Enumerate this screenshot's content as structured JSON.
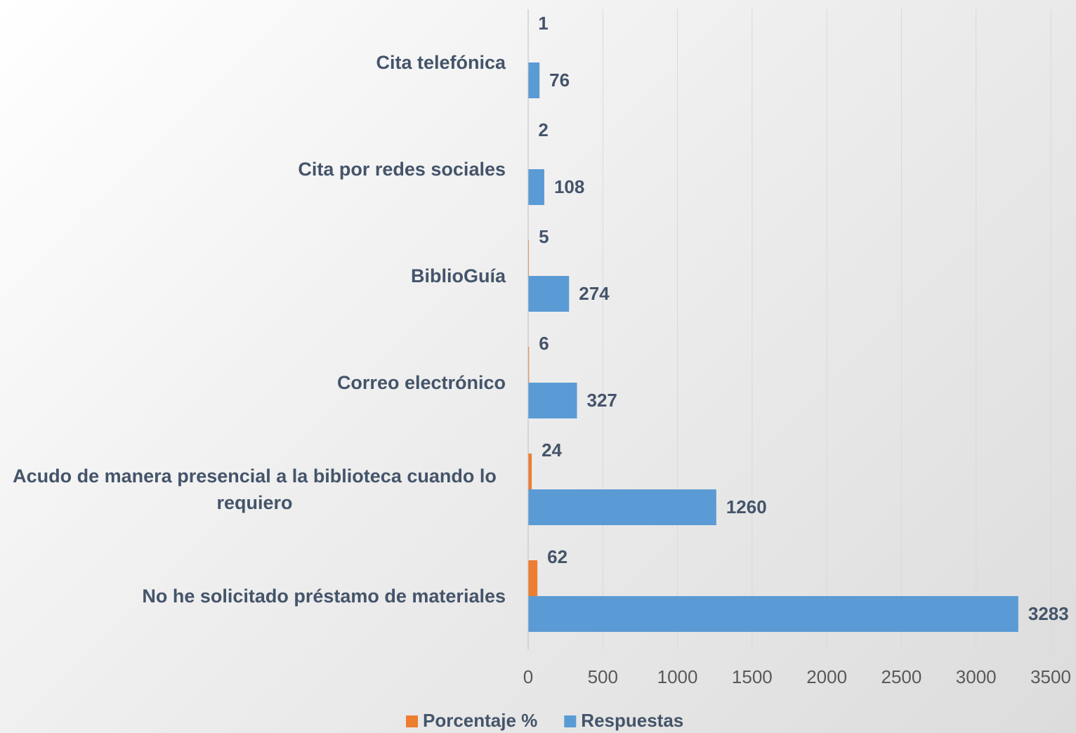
{
  "chart_data": {
    "type": "bar",
    "orientation": "horizontal",
    "categories": [
      "Cita telefónica",
      "Cita por redes sociales",
      "BiblioGuía",
      "Correo electrónico",
      "Acudo de manera presencial a la biblioteca cuando lo requiero",
      "No he solicitado préstamo de materiales"
    ],
    "series": [
      {
        "name": "Porcentaje %",
        "color": "#ed7d31",
        "values": [
          1,
          2,
          5,
          6,
          24,
          62
        ]
      },
      {
        "name": "Respuestas",
        "color": "#5b9bd5",
        "values": [
          76,
          108,
          274,
          327,
          1260,
          3283
        ]
      }
    ],
    "xlim": [
      0,
      3500
    ],
    "xticks": [
      0,
      500,
      1000,
      1500,
      2000,
      2500,
      3000,
      3500
    ],
    "grid": true,
    "legend": "bottom"
  }
}
